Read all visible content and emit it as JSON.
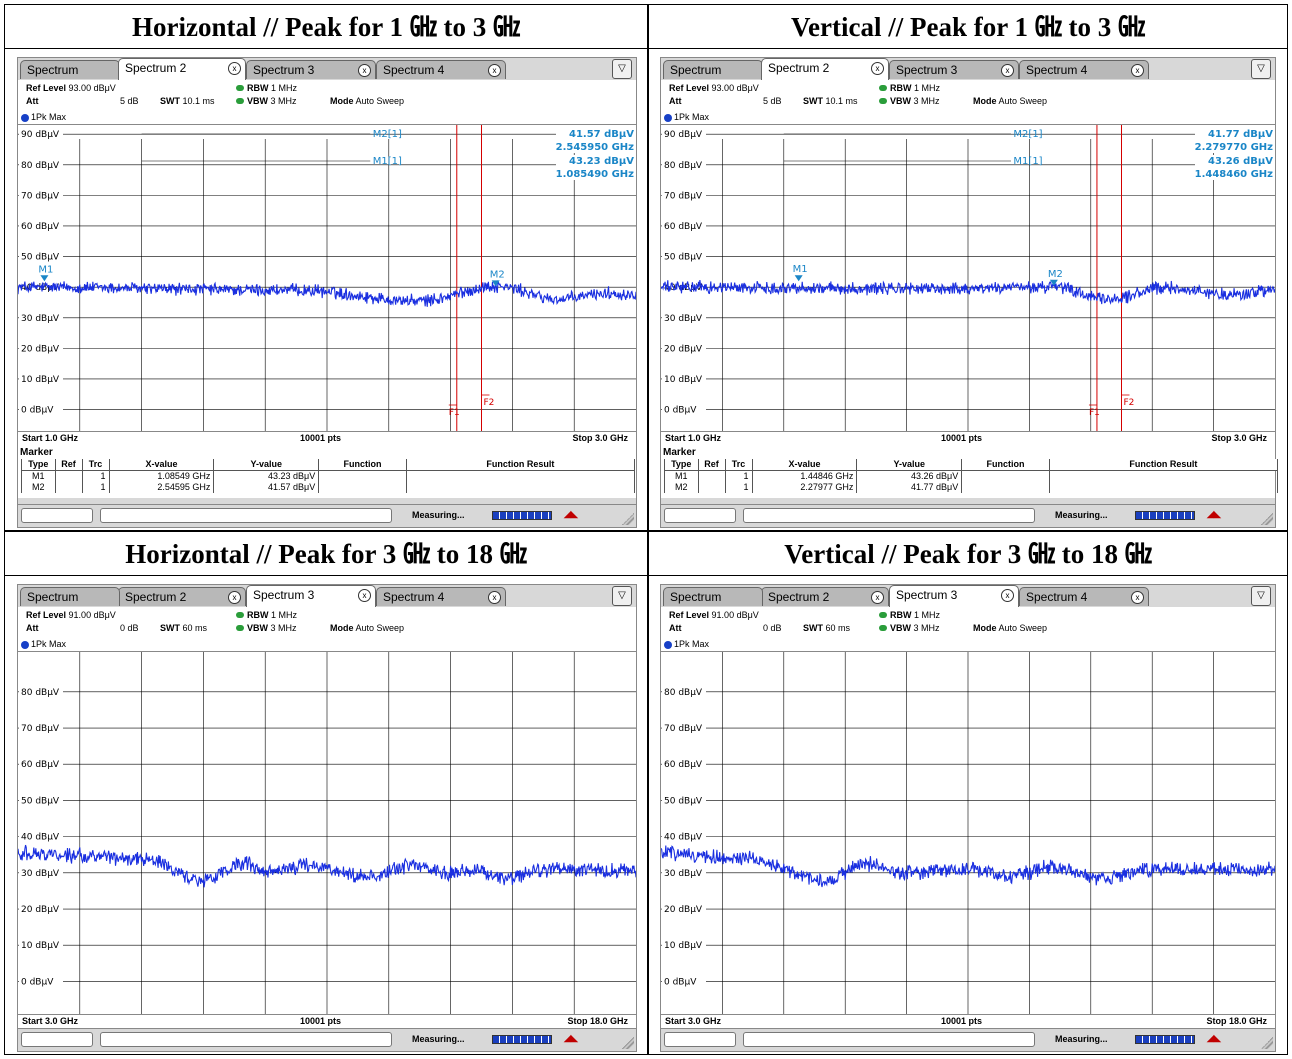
{
  "panels": [
    {
      "id": "h-1-3",
      "title": "Horizontal // Peak for 1 ㎓ to 3 ㎓",
      "tabs": [
        "Spectrum",
        "Spectrum 2",
        "Spectrum 3",
        "Spectrum 4"
      ],
      "active_tab": 1,
      "ref_level_label": "Ref Level",
      "ref_level": "93.00 dBμV",
      "att_label": "Att",
      "att": "5 dB",
      "swt_label": "SWT",
      "swt": "10.1 ms",
      "rbw_label": "RBW",
      "rbw": "1 MHz",
      "vbw_label": "VBW",
      "vbw": "3 MHz",
      "mode_label": "Mode",
      "mode": "Auto Sweep",
      "trace_label": "1Pk Max",
      "start": "Start 1.0 GHz",
      "points": "10001 pts",
      "stop": "Stop 3.0 GHz",
      "y_ticks": [
        "90 dBμV",
        "80 dBμV",
        "70 dBμV",
        "60 dBμV",
        "50 dBμV",
        "40 dBμV",
        "30 dBμV",
        "20 dBμV",
        "10 dBμV",
        "0 dBμV"
      ],
      "y_top": 93,
      "y_bottom": -7,
      "x_range": [
        1.0,
        3.0
      ],
      "trace_level": 38.5,
      "trace_ripple": [
        [
          1.0,
          1.5
        ],
        [
          1.9,
          0.5
        ],
        [
          2.3,
          -3.0
        ],
        [
          2.55,
          1.8
        ],
        [
          2.75,
          -2.5
        ],
        [
          2.9,
          -0.5
        ],
        [
          3.0,
          -0.8
        ]
      ],
      "f_lines": [
        {
          "label": "F1",
          "x": 2.42
        },
        {
          "label": "F2",
          "x": 2.5
        }
      ],
      "marker_readout": [
        {
          "name": "M2[1]",
          "value": "41.57 dBμV",
          "freq": "2.545950 GHz"
        },
        {
          "name": "M1[1]",
          "value": "43.23 dBμV",
          "freq": "1.085490 GHz"
        }
      ],
      "markers_on_plot": [
        {
          "label": "M1",
          "x": 1.08549,
          "y": 43.23
        },
        {
          "label": "M2",
          "x": 2.54595,
          "y": 41.57
        }
      ],
      "marker_table": {
        "title": "Marker",
        "headers": [
          "Type",
          "Ref",
          "Trc",
          "X-value",
          "Y-value",
          "Function",
          "Function Result"
        ],
        "rows": [
          [
            "M1",
            "",
            "1",
            "1.08549 GHz",
            "43.23 dBμV",
            "",
            ""
          ],
          [
            "M2",
            "",
            "1",
            "2.54595 GHz",
            "41.57 dBμV",
            "",
            ""
          ]
        ]
      },
      "status": "Measuring..."
    },
    {
      "id": "v-1-3",
      "title": "Vertical // Peak for 1 ㎓ to 3 ㎓",
      "tabs": [
        "Spectrum",
        "Spectrum 2",
        "Spectrum 3",
        "Spectrum 4"
      ],
      "active_tab": 1,
      "ref_level_label": "Ref Level",
      "ref_level": "93.00 dBμV",
      "att_label": "Att",
      "att": "5 dB",
      "swt_label": "SWT",
      "swt": "10.1 ms",
      "rbw_label": "RBW",
      "rbw": "1 MHz",
      "vbw_label": "VBW",
      "vbw": "3 MHz",
      "mode_label": "Mode",
      "mode": "Auto Sweep",
      "trace_label": "1Pk Max",
      "start": "Start 1.0 GHz",
      "points": "10001 pts",
      "stop": "Stop 3.0 GHz",
      "y_ticks": [
        "90 dBμV",
        "80 dBμV",
        "70 dBμV",
        "60 dBμV",
        "50 dBμV",
        "40 dBμV",
        "30 dBμV",
        "20 dBμV",
        "10 dBμV",
        "0 dBμV"
      ],
      "y_top": 93,
      "y_bottom": -7,
      "x_range": [
        1.0,
        3.0
      ],
      "trace_level": 39.0,
      "trace_ripple": [
        [
          1.0,
          1.0
        ],
        [
          1.9,
          0.5
        ],
        [
          2.28,
          1.0
        ],
        [
          2.45,
          -3.0
        ],
        [
          2.65,
          0.8
        ],
        [
          2.85,
          -1.5
        ],
        [
          3.0,
          0.0
        ]
      ],
      "f_lines": [
        {
          "label": "F1",
          "x": 2.42
        },
        {
          "label": "F2",
          "x": 2.5
        }
      ],
      "marker_readout": [
        {
          "name": "M2[1]",
          "value": "41.77 dBμV",
          "freq": "2.279770 GHz"
        },
        {
          "name": "M1[1]",
          "value": "43.26 dBμV",
          "freq": "1.448460 GHz"
        }
      ],
      "markers_on_plot": [
        {
          "label": "M1",
          "x": 1.44846,
          "y": 43.26
        },
        {
          "label": "M2",
          "x": 2.27977,
          "y": 41.77
        }
      ],
      "marker_table": {
        "title": "Marker",
        "headers": [
          "Type",
          "Ref",
          "Trc",
          "X-value",
          "Y-value",
          "Function",
          "Function Result"
        ],
        "rows": [
          [
            "M1",
            "",
            "1",
            "1.44846 GHz",
            "43.26 dBμV",
            "",
            ""
          ],
          [
            "M2",
            "",
            "1",
            "2.27977 GHz",
            "41.77 dBμV",
            "",
            ""
          ]
        ]
      },
      "status": "Measuring..."
    },
    {
      "id": "h-3-18",
      "title": "Horizontal // Peak for 3 ㎓ to 18 ㎓",
      "tabs": [
        "Spectrum",
        "Spectrum 2",
        "Spectrum 3",
        "Spectrum 4"
      ],
      "active_tab": 2,
      "ref_level_label": "Ref Level",
      "ref_level": "91.00 dBμV",
      "att_label": "Att",
      "att": "0 dB",
      "swt_label": "SWT",
      "swt": "60 ms",
      "rbw_label": "RBW",
      "rbw": "1 MHz",
      "vbw_label": "VBW",
      "vbw": "3 MHz",
      "mode_label": "Mode",
      "mode": "Auto Sweep",
      "trace_label": "1Pk Max",
      "start": "Start 3.0 GHz",
      "points": "10001 pts",
      "stop": "Stop 18.0 GHz",
      "y_ticks": [
        "80 dBμV",
        "70 dBμV",
        "60 dBμV",
        "50 dBμV",
        "40 dBμV",
        "30 dBμV",
        "20 dBμV",
        "10 dBμV",
        "0 dBμV"
      ],
      "y_top": 91,
      "y_bottom": -9,
      "x_range": [
        3.0,
        18.0
      ],
      "trace_level": 32.0,
      "trace_ripple": [
        [
          3.0,
          3.5
        ],
        [
          6.0,
          2.0
        ],
        [
          7.5,
          -4.0
        ],
        [
          8.5,
          0.5
        ],
        [
          9.0,
          -2.0
        ],
        [
          10.0,
          0.0
        ],
        [
          11.5,
          -3.0
        ],
        [
          12.5,
          0.0
        ],
        [
          13.5,
          -2.0
        ],
        [
          14.0,
          -1.0
        ],
        [
          14.8,
          -3.5
        ],
        [
          16.0,
          -1.0
        ],
        [
          18.0,
          -1.5
        ]
      ],
      "f_lines": [],
      "marker_readout": [],
      "markers_on_plot": [],
      "marker_table": null,
      "status": "Measuring..."
    },
    {
      "id": "v-3-18",
      "title": "Vertical // Peak for 3 ㎓ to 18 ㎓",
      "tabs": [
        "Spectrum",
        "Spectrum 2",
        "Spectrum 3",
        "Spectrum 4"
      ],
      "active_tab": 2,
      "ref_level_label": "Ref Level",
      "ref_level": "91.00 dBμV",
      "att_label": "Att",
      "att": "0 dB",
      "swt_label": "SWT",
      "swt": "60 ms",
      "rbw_label": "RBW",
      "rbw": "1 MHz",
      "vbw_label": "VBW",
      "vbw": "3 MHz",
      "mode_label": "Mode",
      "mode": "Auto Sweep",
      "trace_label": "1Pk Max",
      "start": "Start 3.0 GHz",
      "points": "10001 pts",
      "stop": "Stop 18.0 GHz",
      "y_ticks": [
        "80 dBμV",
        "70 dBμV",
        "60 dBμV",
        "50 dBμV",
        "40 dBμV",
        "30 dBμV",
        "20 dBμV",
        "10 dBμV",
        "0 dBμV"
      ],
      "y_top": 91,
      "y_bottom": -9,
      "x_range": [
        3.0,
        18.0
      ],
      "trace_level": 32.0,
      "trace_ripple": [
        [
          3.0,
          3.5
        ],
        [
          5.0,
          2.0
        ],
        [
          7.0,
          -4.0
        ],
        [
          8.0,
          0.5
        ],
        [
          9.0,
          -2.0
        ],
        [
          10.5,
          -1.0
        ],
        [
          11.5,
          -3.0
        ],
        [
          12.5,
          -0.5
        ],
        [
          13.8,
          -3.5
        ],
        [
          15.0,
          -1.0
        ],
        [
          18.0,
          -1.0
        ]
      ],
      "f_lines": [],
      "marker_readout": [],
      "markers_on_plot": [],
      "marker_table": null,
      "status": "Measuring..."
    }
  ],
  "colors": {
    "trace": "#1a2fe0",
    "grid": "#000000",
    "marker": "#1a86c7",
    "f_line": "#d40000"
  }
}
